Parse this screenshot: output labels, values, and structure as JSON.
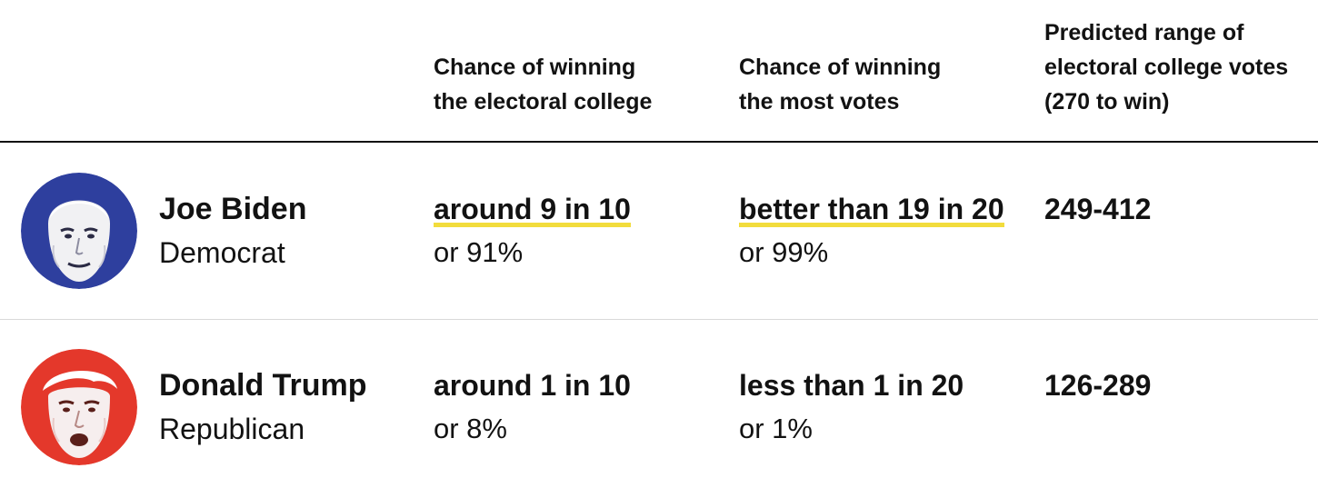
{
  "columns": {
    "candidate": "",
    "electoral_college": "Chance of winning\nthe electoral college",
    "popular_vote": "Chance of winning\nthe most votes",
    "ec_range": "Predicted range of\nelectoral college votes\n(270 to win)"
  },
  "rows": [
    {
      "name": "Joe Biden",
      "party": "Democrat",
      "avatar_color": "#2e3f9e",
      "avatar_icon": "candidate-portrait-icon",
      "electoral_college": {
        "text": "around 9 in 10",
        "percent": "or 91%",
        "highlighted": true
      },
      "popular_vote": {
        "text": "better than 19 in 20",
        "percent": "or 99%",
        "highlighted": true
      },
      "ec_range": "249-412"
    },
    {
      "name": "Donald Trump",
      "party": "Republican",
      "avatar_color": "#e4382b",
      "avatar_icon": "candidate-portrait-icon",
      "electoral_college": {
        "text": "around 1 in 10",
        "percent": "or 8%",
        "highlighted": false
      },
      "popular_vote": {
        "text": "less than 1 in 20",
        "percent": "or 1%",
        "highlighted": false
      },
      "ec_range": "126-289"
    }
  ],
  "colors": {
    "highlight": "#f2dc3c",
    "democrat": "#2e3f9e",
    "republican": "#e4382b",
    "rule": "#121212",
    "divider": "#d9d9d9"
  }
}
